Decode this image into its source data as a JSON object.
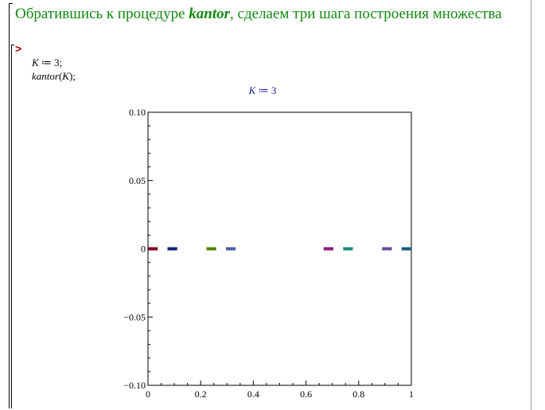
{
  "worksheet": {
    "heading": {
      "before": "Обратившись к процедуре ",
      "keyword": "kantor",
      "after": ", сделаем три шага построения множества"
    },
    "prompt": ">",
    "input": {
      "line1_var": "K",
      "line1_rest": " ≔ 3;",
      "line2_func": "kantor",
      "line2_rest": "(",
      "line2_arg": "K",
      "line2_end": ");"
    },
    "output_caption": {
      "var": "K",
      "rest": " ≔ 3"
    }
  },
  "chart_data": {
    "type": "scatter",
    "title": "",
    "xlabel": "",
    "ylabel": "",
    "xlim": [
      0,
      1
    ],
    "ylim": [
      -0.1,
      0.1
    ],
    "x_ticks": [
      "0",
      "0.2",
      "0.4",
      "0.6",
      "0.8",
      "1"
    ],
    "y_ticks": [
      "0.10",
      "0.05",
      "0",
      "−0.05",
      "−0.10"
    ],
    "y_tick_values": [
      0.1,
      0.05,
      0,
      -0.05,
      -0.1
    ],
    "x_tick_values": [
      0,
      0.2,
      0.4,
      0.6,
      0.8,
      1
    ],
    "segments": [
      {
        "x0": 0.0,
        "x1": 0.037,
        "y": 0,
        "color": "#800022"
      },
      {
        "x0": 0.074,
        "x1": 0.111,
        "y": 0,
        "color": "#0f1f7a"
      },
      {
        "x0": 0.222,
        "x1": 0.259,
        "y": 0,
        "color": "#4f8000"
      },
      {
        "x0": 0.296,
        "x1": 0.333,
        "y": 0,
        "color": "#4a5fa8"
      },
      {
        "x0": 0.667,
        "x1": 0.704,
        "y": 0,
        "color": "#8a1e7a"
      },
      {
        "x0": 0.741,
        "x1": 0.778,
        "y": 0,
        "color": "#1a8a7a"
      },
      {
        "x0": 0.889,
        "x1": 0.926,
        "y": 0,
        "color": "#6a4a9a"
      },
      {
        "x0": 0.963,
        "x1": 1.0,
        "y": 0,
        "color": "#155a7a"
      }
    ]
  }
}
